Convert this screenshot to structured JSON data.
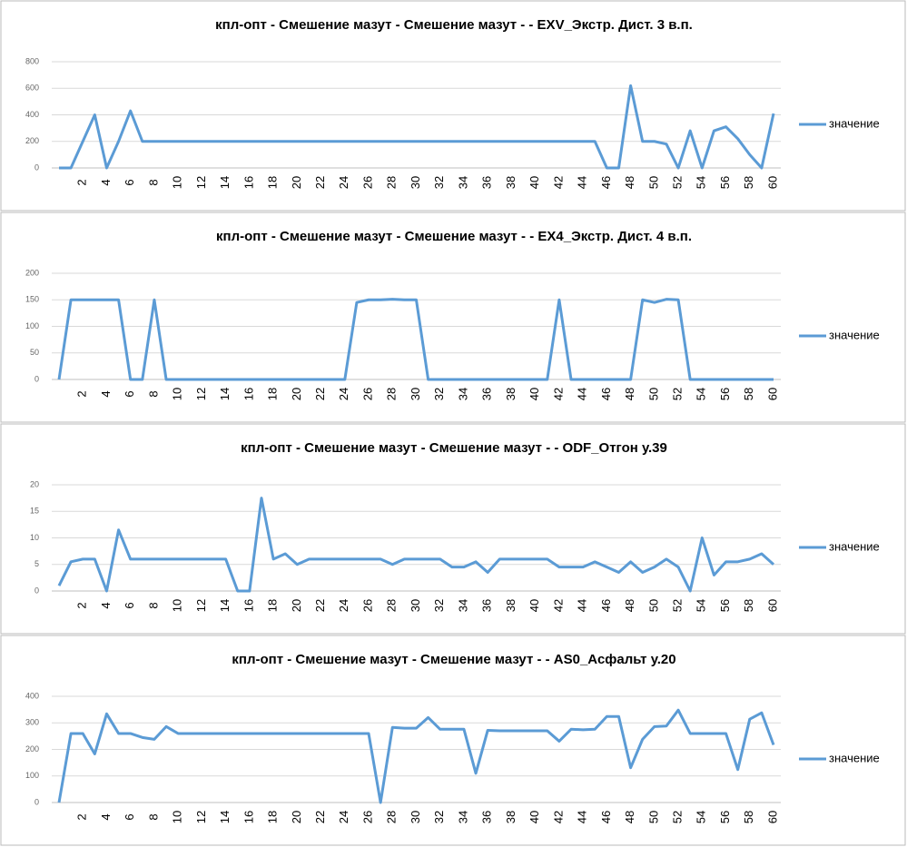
{
  "chart_data": [
    {
      "type": "line",
      "title": "кпл-опт - Смешение мазут - Смешение мазут -  - EXV_Экстр. Дист. 3 в.п.",
      "legend": "right",
      "grid": true,
      "categories": [
        null,
        null,
        "2",
        null,
        "4",
        null,
        "6",
        null,
        "8",
        null,
        "10",
        null,
        "12",
        null,
        "14",
        null,
        "16",
        null,
        "18",
        null,
        "20",
        null,
        "22",
        null,
        "24",
        null,
        "26",
        null,
        "28",
        null,
        "30",
        null,
        "32",
        null,
        "34",
        null,
        "36",
        null,
        "38",
        null,
        "40",
        null,
        "42",
        null,
        "44",
        null,
        "46",
        null,
        "48",
        null,
        "50",
        null,
        "52",
        null,
        "54",
        null,
        "56",
        null,
        "58",
        null,
        "60"
      ],
      "ylim": [
        0,
        800
      ],
      "yticks": [
        0,
        200,
        400,
        600,
        800
      ],
      "series": [
        {
          "name": "значение",
          "color": "#5b9bd5",
          "values": [
            0,
            0,
            200,
            400,
            0,
            200,
            430,
            200,
            200,
            200,
            200,
            200,
            200,
            200,
            200,
            200,
            200,
            200,
            200,
            200,
            200,
            200,
            200,
            200,
            200,
            200,
            200,
            200,
            200,
            200,
            200,
            200,
            200,
            200,
            200,
            200,
            200,
            200,
            200,
            200,
            200,
            200,
            200,
            200,
            200,
            200,
            0,
            0,
            620,
            200,
            200,
            180,
            0,
            280,
            0,
            280,
            310,
            220,
            100,
            0,
            410
          ]
        }
      ]
    },
    {
      "type": "line",
      "title": "кпл-опт - Смешение мазут - Смешение мазут -  - EX4_Экстр. Дист. 4 в.п.",
      "legend": "right",
      "grid": true,
      "categories": [
        null,
        null,
        "2",
        null,
        "4",
        null,
        "6",
        null,
        "8",
        null,
        "10",
        null,
        "12",
        null,
        "14",
        null,
        "16",
        null,
        "18",
        null,
        "20",
        null,
        "22",
        null,
        "24",
        null,
        "26",
        null,
        "28",
        null,
        "30",
        null,
        "32",
        null,
        "34",
        null,
        "36",
        null,
        "38",
        null,
        "40",
        null,
        "42",
        null,
        "44",
        null,
        "46",
        null,
        "48",
        null,
        "50",
        null,
        "52",
        null,
        "54",
        null,
        "56",
        null,
        "58",
        null,
        "60"
      ],
      "ylim": [
        0,
        200
      ],
      "yticks": [
        0,
        50,
        100,
        150,
        200
      ],
      "series": [
        {
          "name": "значение",
          "color": "#5b9bd5",
          "values": [
            0,
            150,
            150,
            150,
            150,
            150,
            0,
            0,
            150,
            0,
            0,
            0,
            0,
            0,
            0,
            0,
            0,
            0,
            0,
            0,
            0,
            0,
            0,
            0,
            0,
            145,
            150,
            150,
            151,
            150,
            150,
            0,
            0,
            0,
            0,
            0,
            0,
            0,
            0,
            0,
            0,
            0,
            150,
            0,
            0,
            0,
            0,
            0,
            0,
            150,
            145,
            151,
            150,
            0,
            0,
            0,
            0,
            0,
            0,
            0,
            0
          ]
        }
      ]
    },
    {
      "type": "line",
      "title": "кпл-опт - Смешение мазут - Смешение мазут -  - ODF_Отгон у.39",
      "legend": "right",
      "grid": true,
      "categories": [
        null,
        null,
        "2",
        null,
        "4",
        null,
        "6",
        null,
        "8",
        null,
        "10",
        null,
        "12",
        null,
        "14",
        null,
        "16",
        null,
        "18",
        null,
        "20",
        null,
        "22",
        null,
        "24",
        null,
        "26",
        null,
        "28",
        null,
        "30",
        null,
        "32",
        null,
        "34",
        null,
        "36",
        null,
        "38",
        null,
        "40",
        null,
        "42",
        null,
        "44",
        null,
        "46",
        null,
        "48",
        null,
        "50",
        null,
        "52",
        null,
        "54",
        null,
        "56",
        null,
        "58",
        null,
        "60"
      ],
      "ylim": [
        0,
        20
      ],
      "yticks": [
        0,
        5,
        10,
        15,
        20
      ],
      "series": [
        {
          "name": "значение",
          "color": "#5b9bd5",
          "values": [
            1,
            5.5,
            6,
            6,
            0,
            11.5,
            6,
            6,
            6,
            6,
            6,
            6,
            6,
            6,
            6,
            0,
            0,
            17.5,
            6,
            7,
            5,
            6,
            6,
            6,
            6,
            6,
            6,
            6,
            5,
            6,
            6,
            6,
            6,
            4.5,
            4.5,
            5.5,
            3.5,
            6,
            6,
            6,
            6,
            6,
            4.5,
            4.5,
            4.5,
            5.5,
            4.5,
            3.5,
            5.5,
            3.5,
            4.5,
            6,
            4.5,
            0,
            10,
            3,
            5.5,
            5.5,
            6,
            7,
            5
          ]
        }
      ]
    },
    {
      "type": "line",
      "title": "кпл-опт - Смешение мазут - Смешение мазут -  - AS0_Асфальт у.20",
      "legend": "right",
      "grid": true,
      "categories": [
        null,
        null,
        "2",
        null,
        "4",
        null,
        "6",
        null,
        "8",
        null,
        "10",
        null,
        "12",
        null,
        "14",
        null,
        "16",
        null,
        "18",
        null,
        "20",
        null,
        "22",
        null,
        "24",
        null,
        "26",
        null,
        "28",
        null,
        "30",
        null,
        "32",
        null,
        "34",
        null,
        "36",
        null,
        "38",
        null,
        "40",
        null,
        "42",
        null,
        "44",
        null,
        "46",
        null,
        "48",
        null,
        "50",
        null,
        "52",
        null,
        "54",
        null,
        "56",
        null,
        "58",
        null,
        "60"
      ],
      "ylim": [
        0,
        400
      ],
      "yticks": [
        0,
        100,
        200,
        300,
        400
      ],
      "series": [
        {
          "name": "значение",
          "color": "#5b9bd5",
          "values": [
            0,
            260,
            260,
            183,
            334,
            260,
            260,
            245,
            238,
            286,
            260,
            260,
            260,
            260,
            260,
            260,
            260,
            260,
            260,
            260,
            260,
            260,
            260,
            260,
            260,
            260,
            260,
            0,
            283,
            280,
            280,
            320,
            276,
            276,
            276,
            110,
            272,
            270,
            270,
            270,
            270,
            270,
            231,
            276,
            274,
            276,
            324,
            324,
            131,
            238,
            286,
            288,
            348,
            260,
            260,
            260,
            260,
            124,
            314,
            338,
            217
          ]
        }
      ]
    }
  ]
}
